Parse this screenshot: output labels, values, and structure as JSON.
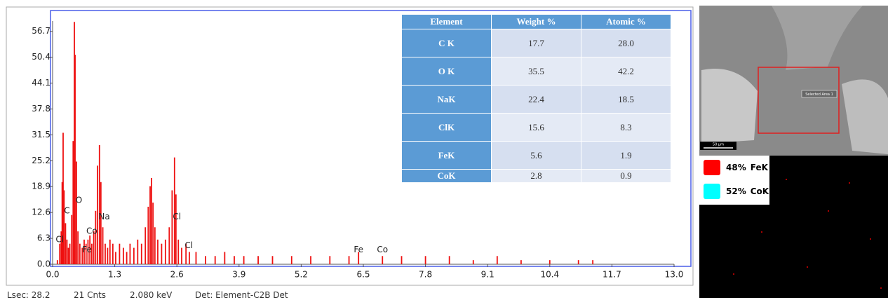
{
  "chart_data": {
    "type": "bar",
    "color": "#ee1111",
    "x": [
      0.1,
      0.15,
      0.18,
      0.2,
      0.22,
      0.24,
      0.27,
      0.3,
      0.33,
      0.36,
      0.4,
      0.43,
      0.455,
      0.47,
      0.5,
      0.53,
      0.57,
      0.62,
      0.66,
      0.7,
      0.74,
      0.78,
      0.82,
      0.86,
      0.9,
      0.94,
      0.98,
      1.01,
      1.05,
      1.1,
      1.15,
      1.2,
      1.26,
      1.32,
      1.4,
      1.48,
      1.55,
      1.62,
      1.7,
      1.78,
      1.86,
      1.94,
      2.0,
      2.04,
      2.07,
      2.1,
      2.14,
      2.2,
      2.28,
      2.36,
      2.44,
      2.5,
      2.55,
      2.58,
      2.63,
      2.7,
      2.79,
      2.86,
      3.0,
      3.2,
      3.4,
      3.6,
      3.8,
      4.0,
      4.3,
      4.6,
      5.0,
      5.4,
      5.8,
      6.2,
      6.4,
      6.9,
      7.3,
      7.8,
      8.3,
      8.8,
      9.3,
      9.8,
      10.4,
      11.0,
      11.3
    ],
    "values": [
      1,
      5,
      8,
      20,
      32,
      18,
      10,
      6,
      4,
      5,
      12,
      30,
      59,
      51,
      25,
      8,
      5,
      4,
      6,
      5,
      6,
      7,
      5,
      8,
      13,
      24,
      29,
      20,
      9,
      5,
      4,
      6,
      5,
      3,
      5,
      4,
      3,
      5,
      4,
      6,
      5,
      9,
      14,
      19,
      21,
      15,
      9,
      6,
      5,
      6,
      9,
      18,
      26,
      17,
      6,
      4,
      5,
      3,
      3,
      2,
      2,
      3,
      2,
      2,
      2,
      2,
      2,
      2,
      2,
      2,
      3,
      2,
      2,
      2,
      2,
      1,
      2,
      1,
      1,
      1,
      1
    ],
    "xlim": [
      0,
      13
    ],
    "xticks": [
      {
        "value": 0,
        "label": "0.0"
      },
      1.3,
      2.6,
      3.9,
      5.2,
      6.5,
      7.8,
      9.1,
      10.4,
      11.7,
      {
        "value": 13,
        "label": "13.0"
      }
    ],
    "ylim": [
      0,
      57.5
    ],
    "yticks": [
      {
        "value": 0,
        "label": "0.0"
      },
      6.3,
      12.6,
      18.9,
      25.2,
      31.5,
      37.8,
      44.1,
      50.4,
      56.7
    ],
    "annotations": [
      {
        "text": "Cl",
        "x": 0.15,
        "y": 6
      },
      {
        "text": "C",
        "x": 0.3,
        "y": 13
      },
      {
        "text": "O",
        "x": 0.55,
        "y": 15.5
      },
      {
        "text": "Co",
        "x": 0.82,
        "y": 8
      },
      {
        "text": "Fe",
        "x": 0.72,
        "y": 3.5
      },
      {
        "text": "Na",
        "x": 1.08,
        "y": 11.5
      },
      {
        "text": "Cl",
        "x": 2.6,
        "y": 11.5
      },
      {
        "text": "Cl",
        "x": 2.85,
        "y": 4.5
      },
      {
        "text": "Fe",
        "x": 6.4,
        "y": 3.5
      },
      {
        "text": "Co",
        "x": 6.9,
        "y": 3.5
      }
    ]
  },
  "table": {
    "header": [
      "Element",
      "Weight %",
      "Atomic %"
    ],
    "rows": [
      [
        "C K",
        "17.7",
        "28.0"
      ],
      [
        "O K",
        "35.5",
        "42.2"
      ],
      [
        "NaK",
        "22.4",
        "18.5"
      ],
      [
        "ClK",
        "15.6",
        "8.3"
      ],
      [
        "FeK",
        "5.6",
        "1.9"
      ],
      [
        "CoK",
        "2.8",
        "0.9"
      ]
    ]
  },
  "status_bar": [
    "Lsec: 28.2",
    "21 Cnts",
    "2.080 keV",
    "Det: Element-C2B Det"
  ],
  "image": {
    "area_label": "Selected Area 1",
    "scale_bar": "50 µm"
  },
  "map_legend": [
    {
      "percent": "48%",
      "element": "FeK",
      "color": "#ff0000"
    },
    {
      "percent": "52%",
      "element": "CoK",
      "color": "#00ffff"
    }
  ]
}
